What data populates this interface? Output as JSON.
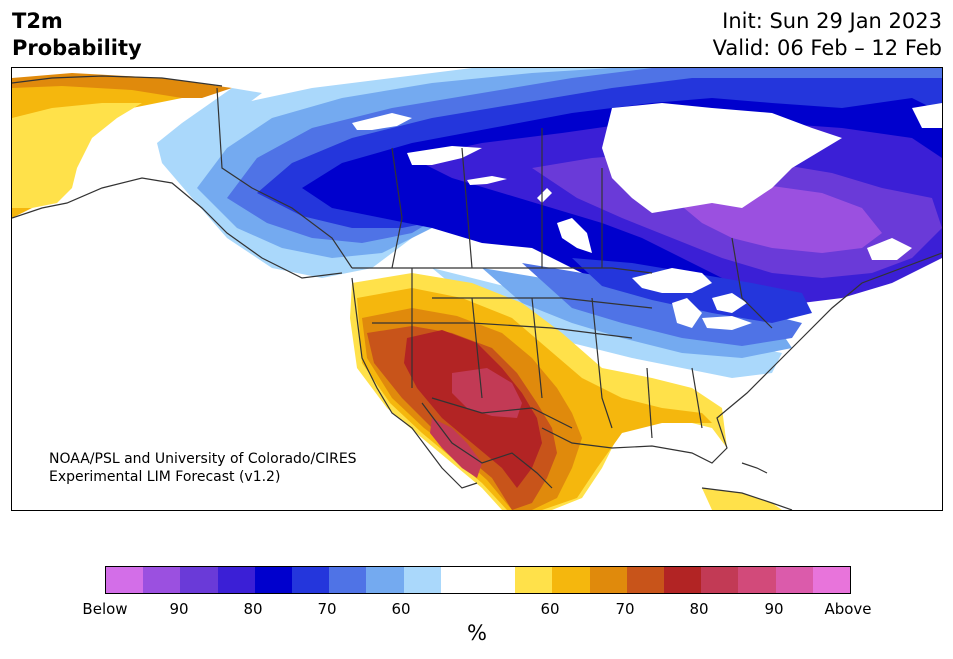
{
  "header": {
    "title_line1": "T2m",
    "title_line2": "Probability",
    "init": "Init: Sun 29 Jan 2023",
    "valid": "Valid: 06 Feb – 12 Feb"
  },
  "credit": {
    "line1": "NOAA/PSL and University of Colorado/CIRES",
    "line2": "Experimental LIM Forecast (v1.2)"
  },
  "colorbar": {
    "unit_label": "%",
    "colors": [
      "#d36ee8",
      "#9b50e0",
      "#6a3ad8",
      "#3b1fd6",
      "#0000cd",
      "#2436dc",
      "#4f73e6",
      "#74aaf0",
      "#aad8fb",
      "#ffffff",
      "#ffffff",
      "#ffe14a",
      "#f5b70d",
      "#e08a0c",
      "#c8541a",
      "#b22424",
      "#c23a55",
      "#d24a7a",
      "#db5bab",
      "#e874db"
    ],
    "tick_labels": [
      "Below",
      "90",
      "80",
      "70",
      "60",
      "60",
      "70",
      "80",
      "90",
      "Above"
    ]
  },
  "map": {
    "colors": {
      "cold_60": "#aad8fb",
      "cold_65": "#74aaf0",
      "cold_70": "#4f73e6",
      "cold_75": "#2436dc",
      "cold_80": "#0000cd",
      "cold_85": "#3b1fd6",
      "cold_90": "#6a3ad8",
      "cold_95": "#9b50e0",
      "warm_60": "#ffe14a",
      "warm_65": "#f5b70d",
      "warm_70": "#e08a0c",
      "warm_75": "#c8541a",
      "warm_80": "#b22424",
      "warm_85": "#c23a55",
      "border": "#333333",
      "water": "#ffffff"
    }
  }
}
